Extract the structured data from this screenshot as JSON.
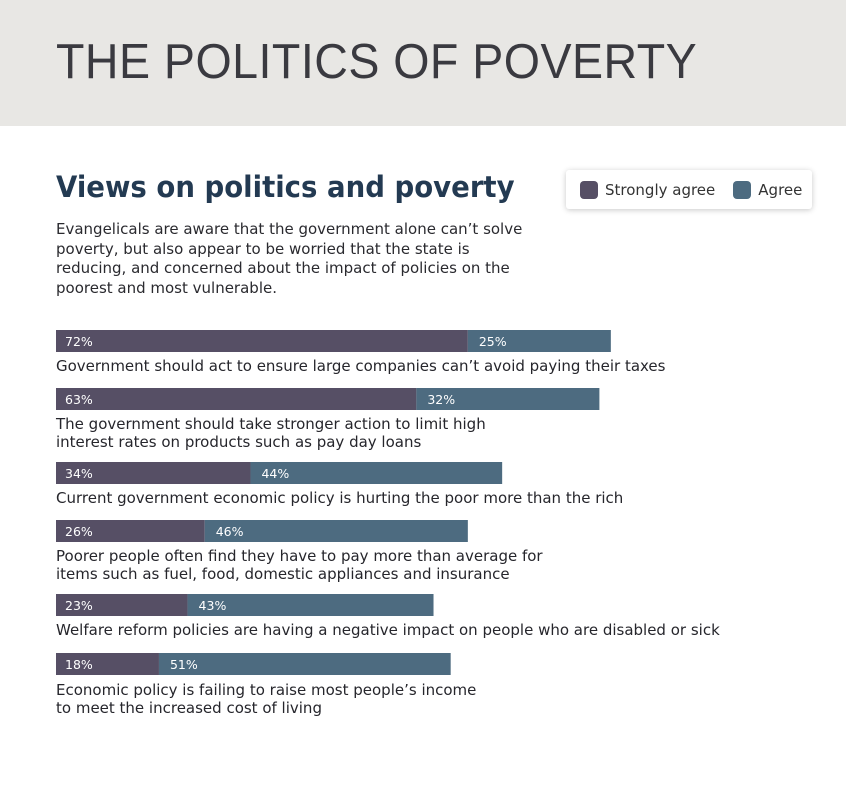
{
  "header": {
    "title": "THE POLITICS OF POVERTY"
  },
  "subtitle": "Views on politics and poverty",
  "intro": "Evangelicals are aware that the government alone can’t solve poverty, but also appear to be worried that the state is reducing, and concerned about the impact of policies on the poorest and most vulnerable.",
  "legend": {
    "strongly_agree": "Strongly agree",
    "agree": "Agree"
  },
  "colors": {
    "strongly_agree": "#564f65",
    "agree": "#4d6b80",
    "banner": "#e8e7e4",
    "subtitle": "#233a52"
  },
  "chart_data": {
    "type": "bar",
    "orientation": "horizontal",
    "stacked": true,
    "unit": "%",
    "xlim": [
      0,
      100
    ],
    "categories": [
      "Government should act to ensure large companies can’t avoid paying their taxes",
      "The government should take stronger action to limit high\ninterest rates on products such as pay day loans",
      "Current government economic policy is hurting the poor more than the rich",
      "Poorer people often find they have to pay more than average for\nitems such as fuel, food, domestic appliances and insurance",
      "Welfare reform policies are having a negative impact on people who are disabled or sick",
      "Economic policy is failing to raise most people’s income\nto meet the increased cost of living"
    ],
    "series": [
      {
        "name": "Strongly agree",
        "values": [
          72,
          63,
          34,
          26,
          23,
          18
        ],
        "labels": [
          "72%",
          "63%",
          "34%",
          "26%",
          "23%",
          "18%"
        ]
      },
      {
        "name": "Agree",
        "values": [
          25,
          32,
          44,
          46,
          43,
          51
        ],
        "labels": [
          "25%",
          "32%",
          "44%",
          "46%",
          "43%",
          "51%"
        ]
      }
    ]
  }
}
